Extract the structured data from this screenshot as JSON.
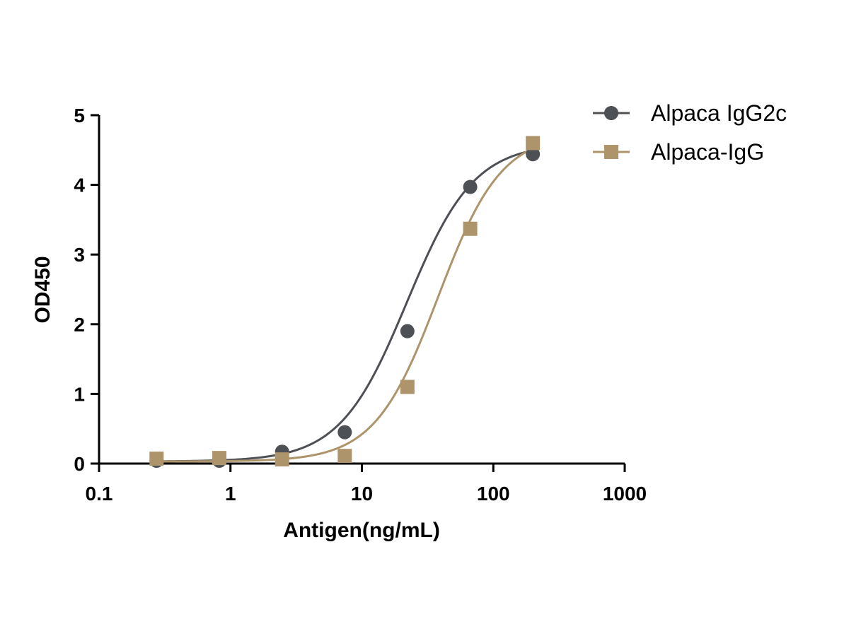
{
  "chart_data": {
    "type": "line",
    "xscale": "log",
    "xlabel": "Antigen(ng/mL)",
    "ylabel": "OD450",
    "xlim": [
      0.1,
      1000
    ],
    "ylim": [
      0,
      5
    ],
    "xticks": [
      0.1,
      1,
      10,
      100,
      1000
    ],
    "xtick_labels": [
      "0.1",
      "1",
      "10",
      "100",
      "1000"
    ],
    "yticks": [
      0,
      1,
      2,
      3,
      4,
      5
    ],
    "ytick_labels": [
      "0",
      "1",
      "2",
      "3",
      "4",
      "5"
    ],
    "grid": false,
    "legend": "top-right",
    "series": [
      {
        "name": "Alpaca IgG2c",
        "marker": "circle",
        "color": "#4d5054",
        "x": [
          0.274,
          0.823,
          2.47,
          7.41,
          22.2,
          66.7,
          200
        ],
        "y": [
          0.04,
          0.04,
          0.17,
          0.45,
          1.9,
          3.97,
          4.44
        ],
        "fit": {
          "bottom": 0.03,
          "top": 4.6,
          "ec50": 22.0,
          "hill": 1.7
        }
      },
      {
        "name": "Alpaca-IgG",
        "marker": "square",
        "color": "#ad946b",
        "x": [
          0.274,
          0.823,
          2.47,
          7.41,
          22.2,
          66.7,
          200
        ],
        "y": [
          0.07,
          0.08,
          0.06,
          0.11,
          1.1,
          3.37,
          4.6
        ],
        "fit": {
          "bottom": 0.03,
          "top": 4.75,
          "ec50": 38.0,
          "hill": 1.8
        }
      }
    ]
  }
}
